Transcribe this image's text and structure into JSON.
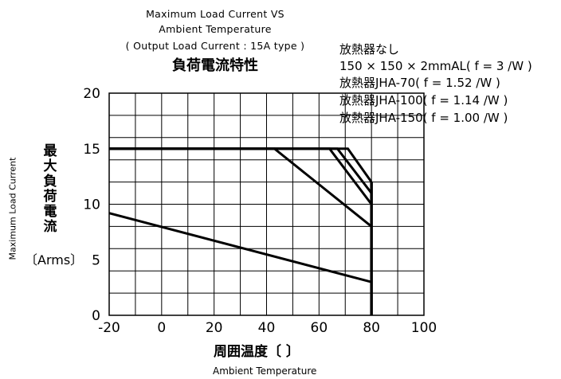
{
  "chart_data": {
    "type": "line",
    "title_lines": [
      "Maximum Load Current VS",
      "Ambient Temperature",
      "( Output Load Current : 15A type )"
    ],
    "title_jp": "負荷電流特性",
    "xlabel_jp": "周囲温度〔 〕",
    "xlabel_en": "Ambient Temperature",
    "ylabel_jp": "最大負荷電流",
    "ylabel_unit": "〔Arms〕",
    "ylabel_en": "Maximum Load Current",
    "xlim": [
      -20,
      100
    ],
    "ylim": [
      0,
      20
    ],
    "x_ticks": [
      "-20",
      "0",
      "20",
      "40",
      "60",
      "80",
      "100"
    ],
    "y_ticks": [
      "0",
      "5",
      "10",
      "15",
      "20"
    ],
    "grid": true,
    "legend_position": "top-right",
    "legend_lines": [
      "放熱器なし",
      "150 × 150 × 2mmAL(   f = 3   /W )",
      "放熱器JHA-70(   f = 1.52   /W )",
      "放熱器JHA-100(   f = 1.14   /W )",
      "放熱器JHA-150(   f = 1.00   /W )"
    ],
    "series": [
      {
        "x": [
          -20,
          80
        ],
        "y": [
          9.2,
          3.0
        ]
      },
      {
        "x": [
          -20,
          43,
          80
        ],
        "y": [
          15,
          15,
          8.0
        ]
      },
      {
        "x": [
          -20,
          64,
          80
        ],
        "y": [
          15,
          15,
          10.0
        ]
      },
      {
        "x": [
          -20,
          67,
          80
        ],
        "y": [
          15,
          15,
          11.0
        ]
      },
      {
        "x": [
          -20,
          71,
          80
        ],
        "y": [
          15,
          15,
          12.0
        ]
      }
    ],
    "limit_line": {
      "x": [
        80,
        80
      ],
      "y": [
        0,
        12
      ]
    }
  }
}
